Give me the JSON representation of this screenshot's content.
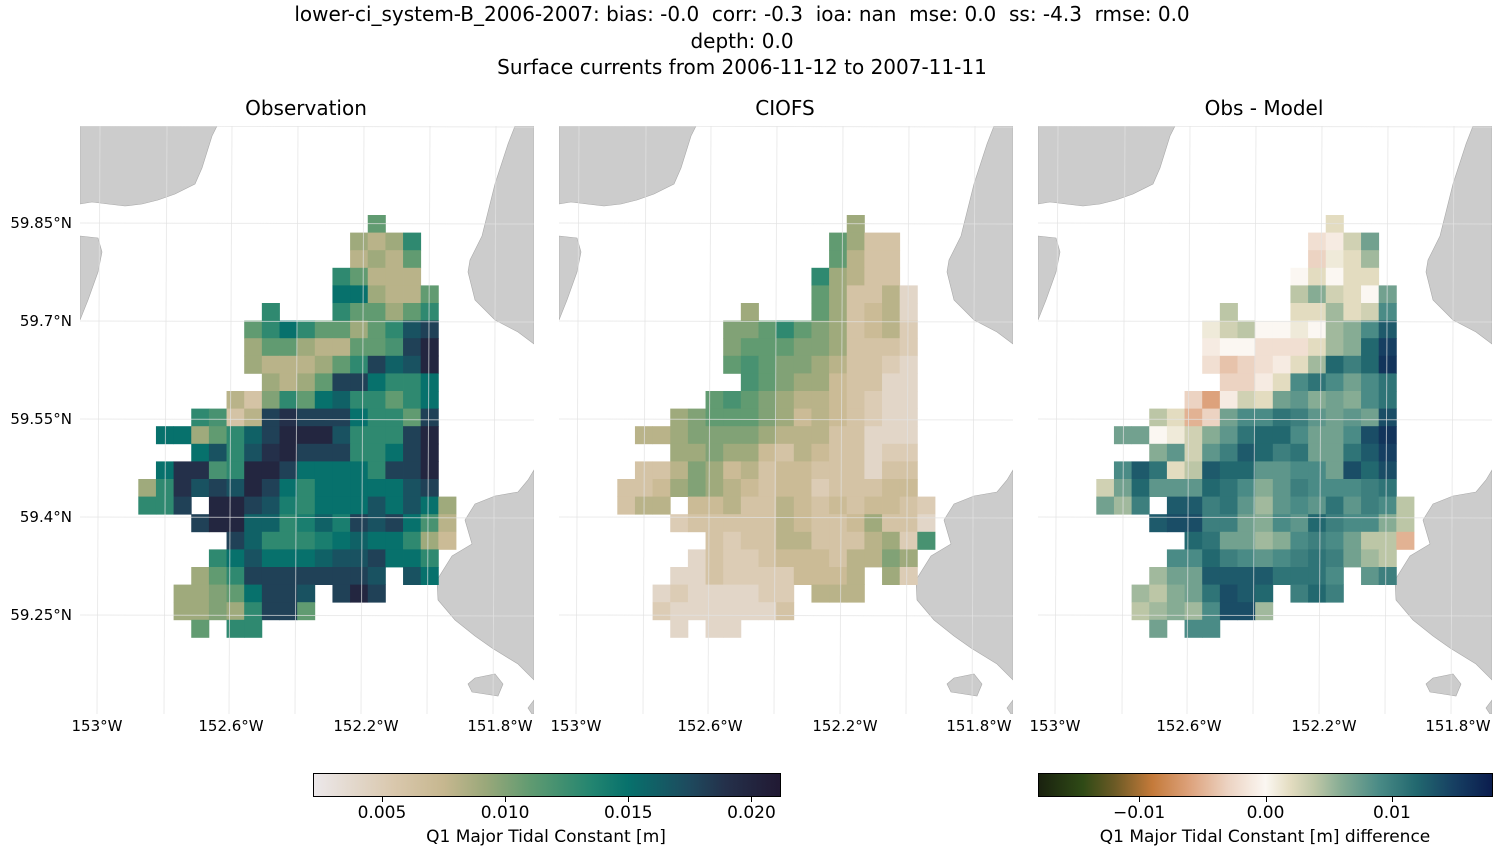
{
  "title": {
    "line1": "lower-ci_system-B_2006-2007: bias: -0.0  corr: -0.3  ioa: nan  mse: 0.0  ss: -4.3  rmse: 0.0",
    "line2": "depth: 0.0",
    "line3": "Surface currents from 2006-11-12 to 2007-11-11"
  },
  "panels": [
    {
      "title": "Observation"
    },
    {
      "title": "CIOFS"
    },
    {
      "title": "Obs - Model"
    }
  ],
  "axes": {
    "lat_ticks": [
      "59.85°N",
      "59.7°N",
      "59.55°N",
      "59.4°N",
      "59.25°N"
    ],
    "lon_ticks": [
      "153°W",
      "152.6°W",
      "152.2°W",
      "151.8°W"
    ]
  },
  "colors": {
    "land": "#cccccc",
    "gridline": "#e2e2e2",
    "background": "#ffffff"
  },
  "colorbars": {
    "main": {
      "label": "Q1 Major Tidal Constant [m]",
      "range": [
        0.0022,
        0.0212
      ],
      "ticks": [
        {
          "value": 0.005,
          "label": "0.005"
        },
        {
          "value": 0.01,
          "label": "0.010"
        },
        {
          "value": 0.015,
          "label": "0.015"
        },
        {
          "value": 0.02,
          "label": "0.020"
        }
      ],
      "stops": [
        [
          0.0022,
          "#ece8ea"
        ],
        [
          0.0055,
          "#d9c7ac"
        ],
        [
          0.0075,
          "#c6b78f"
        ],
        [
          0.0092,
          "#9aa87a"
        ],
        [
          0.011,
          "#619b71"
        ],
        [
          0.0135,
          "#238570"
        ],
        [
          0.015,
          "#07716c"
        ],
        [
          0.0175,
          "#1e4a5e"
        ],
        [
          0.019,
          "#24304a"
        ],
        [
          0.0212,
          "#211933"
        ]
      ]
    },
    "diff": {
      "label": "Q1 Major Tidal Constant [m] difference",
      "range": [
        -0.018,
        0.018
      ],
      "ticks": [
        {
          "value": -0.01,
          "label": "−0.01"
        },
        {
          "value": 0.0,
          "label": "0.00"
        },
        {
          "value": 0.01,
          "label": "0.01"
        }
      ],
      "stops": [
        [
          -0.018,
          "#1a220f"
        ],
        [
          -0.0145,
          "#2f4a16"
        ],
        [
          -0.012,
          "#6b5a25"
        ],
        [
          -0.009,
          "#c47a3a"
        ],
        [
          -0.006,
          "#dda27c"
        ],
        [
          -0.003,
          "#ecd3c2"
        ],
        [
          0.0,
          "#fbf7f2"
        ],
        [
          0.002,
          "#e3dcc0"
        ],
        [
          0.004,
          "#bcc6a6"
        ],
        [
          0.006,
          "#86ac94"
        ],
        [
          0.009,
          "#4a8b86"
        ],
        [
          0.012,
          "#22686f"
        ],
        [
          0.015,
          "#163f62"
        ],
        [
          0.018,
          "#0b1d4e"
        ]
      ]
    }
  },
  "chart_data": [
    {
      "type": "heatmap",
      "title": "Observation",
      "colorbar": "main",
      "values": [
        [
          null,
          null,
          null,
          null,
          null,
          null,
          null,
          null,
          null,
          null,
          null,
          null,
          null,
          0.011,
          null,
          null,
          null,
          null
        ],
        [
          null,
          null,
          null,
          null,
          null,
          null,
          null,
          null,
          null,
          null,
          null,
          null,
          0.009,
          0.008,
          0.009,
          0.013,
          null,
          null
        ],
        [
          null,
          null,
          null,
          null,
          null,
          null,
          null,
          null,
          null,
          null,
          null,
          null,
          0.008,
          0.009,
          0.008,
          0.011,
          null,
          null
        ],
        [
          null,
          null,
          null,
          null,
          null,
          null,
          null,
          null,
          null,
          null,
          null,
          0.013,
          0.011,
          0.008,
          0.008,
          0.008,
          null,
          null
        ],
        [
          null,
          null,
          null,
          null,
          null,
          null,
          null,
          null,
          null,
          null,
          null,
          0.015,
          0.015,
          0.009,
          0.008,
          0.008,
          0.011,
          null
        ],
        [
          null,
          null,
          null,
          null,
          null,
          null,
          null,
          0.013,
          null,
          null,
          null,
          0.013,
          0.011,
          0.011,
          0.009,
          0.011,
          0.013,
          null
        ],
        [
          null,
          null,
          null,
          null,
          null,
          null,
          0.011,
          0.013,
          0.015,
          0.013,
          0.011,
          0.011,
          0.009,
          0.011,
          0.013,
          0.017,
          0.018,
          null
        ],
        [
          null,
          null,
          null,
          null,
          null,
          null,
          0.009,
          0.011,
          0.011,
          0.009,
          0.008,
          0.008,
          0.011,
          0.011,
          0.012,
          0.018,
          0.02,
          null
        ],
        [
          null,
          null,
          null,
          null,
          null,
          null,
          0.009,
          0.008,
          0.008,
          0.008,
          0.009,
          0.011,
          0.013,
          0.018,
          0.016,
          0.017,
          0.02,
          null
        ],
        [
          null,
          null,
          null,
          null,
          null,
          null,
          null,
          0.009,
          0.008,
          0.009,
          0.011,
          0.018,
          0.018,
          0.015,
          0.013,
          0.013,
          0.015,
          null
        ],
        [
          null,
          null,
          null,
          null,
          null,
          0.008,
          0.006,
          0.01,
          0.013,
          0.011,
          0.015,
          0.016,
          0.013,
          0.013,
          0.011,
          0.013,
          0.015,
          null
        ],
        [
          null,
          null,
          null,
          0.013,
          0.012,
          0.006,
          0.008,
          0.018,
          0.019,
          0.018,
          0.018,
          0.018,
          0.015,
          0.013,
          0.013,
          0.011,
          0.018,
          null
        ],
        [
          null,
          0.015,
          0.015,
          0.009,
          0.011,
          0.013,
          0.016,
          0.018,
          0.02,
          0.02,
          0.02,
          0.017,
          0.013,
          0.013,
          0.013,
          0.018,
          0.02,
          null
        ],
        [
          null,
          null,
          null,
          0.015,
          0.017,
          0.013,
          0.017,
          0.019,
          0.02,
          0.018,
          0.018,
          0.018,
          0.013,
          0.013,
          0.015,
          0.018,
          0.02,
          null
        ],
        [
          null,
          0.015,
          0.019,
          0.019,
          0.012,
          0.013,
          0.02,
          0.02,
          0.018,
          0.015,
          0.015,
          0.015,
          0.015,
          0.013,
          0.018,
          0.018,
          0.02,
          null
        ],
        [
          0.009,
          0.013,
          0.019,
          0.017,
          0.018,
          0.017,
          0.02,
          0.018,
          0.015,
          0.013,
          0.015,
          0.015,
          0.015,
          0.015,
          0.015,
          0.017,
          0.018,
          null
        ],
        [
          0.013,
          0.013,
          0.018,
          null,
          0.02,
          0.02,
          0.018,
          0.017,
          0.014,
          0.013,
          0.015,
          0.015,
          0.015,
          0.017,
          0.015,
          0.017,
          0.015,
          0.009
        ],
        [
          null,
          null,
          null,
          0.018,
          0.02,
          0.02,
          0.016,
          0.016,
          0.013,
          0.014,
          0.016,
          0.014,
          0.018,
          0.017,
          0.018,
          0.015,
          0.012,
          0.008
        ],
        [
          null,
          null,
          null,
          null,
          null,
          0.018,
          0.016,
          0.013,
          0.013,
          0.013,
          0.014,
          0.015,
          0.016,
          0.015,
          0.015,
          0.013,
          0.009,
          0.007
        ],
        [
          null,
          null,
          null,
          null,
          0.013,
          0.015,
          0.017,
          0.015,
          0.015,
          0.015,
          0.016,
          0.017,
          0.017,
          0.018,
          0.015,
          0.015,
          0.013,
          null
        ],
        [
          null,
          null,
          null,
          0.009,
          0.011,
          0.013,
          0.018,
          0.018,
          0.018,
          0.018,
          0.018,
          0.018,
          0.018,
          0.017,
          null,
          0.017,
          0.015,
          null
        ],
        [
          null,
          null,
          0.009,
          0.009,
          0.01,
          0.011,
          0.015,
          0.018,
          0.018,
          0.017,
          null,
          0.018,
          0.02,
          0.018,
          null,
          null,
          null,
          null
        ],
        [
          null,
          null,
          0.009,
          0.009,
          0.01,
          0.009,
          0.013,
          0.018,
          0.018,
          0.011,
          null,
          null,
          null,
          null,
          null,
          null,
          null,
          null
        ],
        [
          null,
          null,
          null,
          0.011,
          null,
          0.013,
          0.013,
          null,
          null,
          null,
          null,
          null,
          null,
          null,
          null,
          null,
          null,
          null
        ]
      ]
    },
    {
      "type": "heatmap",
      "title": "CIOFS",
      "colorbar": "main",
      "values": [
        [
          null,
          null,
          null,
          null,
          null,
          null,
          null,
          null,
          null,
          null,
          null,
          null,
          null,
          0.009,
          null,
          null,
          null,
          null
        ],
        [
          null,
          null,
          null,
          null,
          null,
          null,
          null,
          null,
          null,
          null,
          null,
          null,
          0.011,
          0.009,
          0.006,
          0.006,
          null,
          null
        ],
        [
          null,
          null,
          null,
          null,
          null,
          null,
          null,
          null,
          null,
          null,
          null,
          null,
          0.011,
          0.008,
          0.006,
          0.006,
          null,
          null
        ],
        [
          null,
          null,
          null,
          null,
          null,
          null,
          null,
          null,
          null,
          null,
          null,
          0.013,
          0.009,
          0.008,
          0.006,
          0.006,
          null,
          null
        ],
        [
          null,
          null,
          null,
          null,
          null,
          null,
          null,
          null,
          null,
          null,
          null,
          0.011,
          0.009,
          0.006,
          0.006,
          0.008,
          0.004,
          null
        ],
        [
          null,
          null,
          null,
          null,
          null,
          null,
          null,
          0.009,
          null,
          null,
          null,
          0.011,
          0.009,
          0.006,
          0.007,
          0.008,
          0.004,
          null
        ],
        [
          null,
          null,
          null,
          null,
          null,
          null,
          0.01,
          0.01,
          0.011,
          0.013,
          0.011,
          0.01,
          0.009,
          0.006,
          0.007,
          0.008,
          0.005,
          null
        ],
        [
          null,
          null,
          null,
          null,
          null,
          null,
          0.01,
          0.011,
          0.011,
          0.011,
          0.01,
          0.01,
          0.009,
          0.006,
          0.006,
          0.006,
          0.005,
          null
        ],
        [
          null,
          null,
          null,
          null,
          null,
          null,
          0.011,
          0.012,
          0.011,
          0.01,
          0.01,
          0.009,
          0.008,
          0.006,
          0.006,
          0.005,
          0.004,
          null
        ],
        [
          null,
          null,
          null,
          null,
          null,
          null,
          null,
          0.012,
          0.011,
          0.01,
          0.009,
          0.009,
          0.007,
          0.006,
          0.006,
          0.004,
          0.004,
          null
        ],
        [
          null,
          null,
          null,
          null,
          null,
          0.011,
          0.012,
          0.011,
          0.01,
          0.009,
          0.008,
          0.008,
          0.007,
          0.006,
          0.005,
          0.004,
          0.004,
          null
        ],
        [
          null,
          null,
          null,
          0.009,
          0.01,
          0.011,
          0.011,
          0.011,
          0.01,
          0.009,
          0.007,
          0.008,
          0.007,
          0.006,
          0.005,
          0.004,
          0.004,
          null
        ],
        [
          null,
          0.008,
          0.008,
          0.009,
          0.01,
          0.01,
          0.01,
          0.01,
          0.009,
          0.008,
          0.008,
          0.008,
          0.006,
          0.006,
          0.004,
          0.004,
          0.004,
          null
        ],
        [
          null,
          null,
          null,
          0.009,
          0.009,
          0.01,
          0.009,
          0.009,
          0.007,
          0.006,
          0.008,
          0.007,
          0.006,
          0.006,
          0.004,
          0.005,
          0.005,
          null
        ],
        [
          null,
          0.006,
          0.006,
          0.008,
          0.01,
          0.009,
          0.007,
          0.008,
          0.006,
          0.007,
          0.007,
          0.006,
          0.006,
          0.006,
          0.004,
          0.006,
          0.006,
          null
        ],
        [
          0.006,
          0.006,
          0.007,
          0.009,
          0.01,
          0.009,
          0.008,
          0.007,
          0.006,
          0.007,
          0.007,
          0.005,
          0.006,
          0.006,
          0.006,
          0.007,
          0.007,
          null
        ],
        [
          0.006,
          0.008,
          0.008,
          null,
          0.007,
          0.007,
          0.008,
          0.006,
          0.006,
          0.008,
          0.007,
          0.006,
          0.007,
          0.006,
          0.007,
          0.007,
          0.006,
          0.005
        ],
        [
          null,
          null,
          null,
          0.005,
          0.006,
          0.006,
          0.006,
          0.006,
          0.006,
          0.008,
          0.007,
          0.006,
          0.006,
          0.007,
          0.009,
          0.006,
          0.006,
          0.004
        ],
        [
          null,
          null,
          null,
          null,
          null,
          0.006,
          0.005,
          0.006,
          0.006,
          0.008,
          0.008,
          0.006,
          0.006,
          0.006,
          0.008,
          0.009,
          0.005,
          0.012
        ],
        [
          null,
          null,
          null,
          null,
          0.004,
          0.006,
          0.005,
          0.005,
          0.006,
          0.007,
          0.007,
          0.007,
          0.006,
          0.008,
          0.008,
          0.01,
          0.009,
          null
        ],
        [
          null,
          null,
          null,
          0.004,
          0.004,
          0.006,
          0.005,
          0.005,
          0.005,
          0.005,
          0.007,
          0.007,
          0.007,
          0.008,
          null,
          0.009,
          0.005,
          null
        ],
        [
          null,
          null,
          0.004,
          0.005,
          0.004,
          0.004,
          0.004,
          0.004,
          0.005,
          0.005,
          null,
          0.008,
          0.008,
          0.008,
          null,
          null,
          null,
          null
        ],
        [
          null,
          null,
          0.005,
          0.004,
          0.004,
          0.004,
          0.004,
          0.004,
          0.004,
          0.006,
          null,
          null,
          null,
          null,
          null,
          null,
          null,
          null
        ],
        [
          null,
          null,
          null,
          0.004,
          null,
          0.004,
          0.004,
          null,
          null,
          null,
          null,
          null,
          null,
          null,
          null,
          null,
          null,
          null
        ]
      ]
    },
    {
      "type": "heatmap",
      "title": "Obs - Model",
      "colorbar": "diff"
    }
  ]
}
